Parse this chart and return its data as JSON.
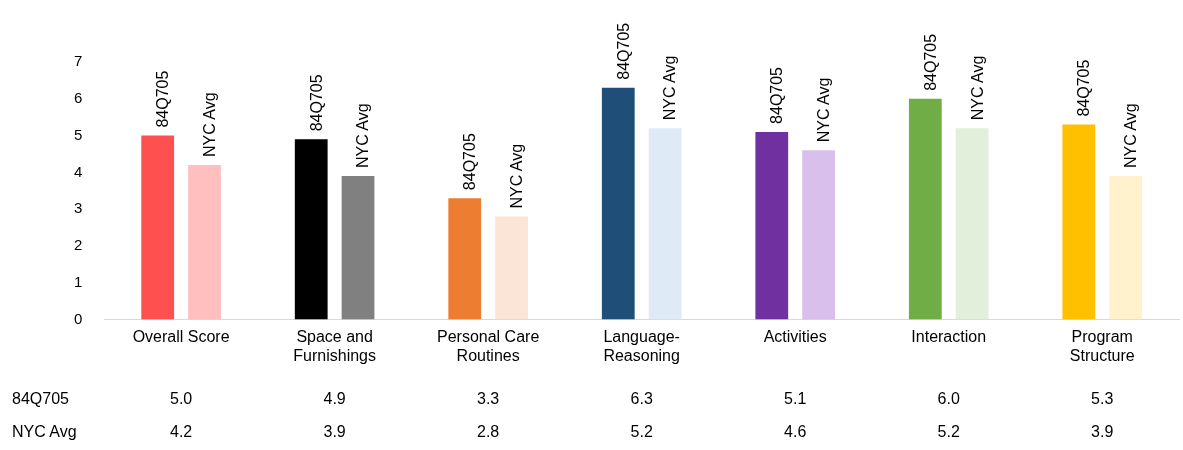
{
  "chart_data": {
    "type": "bar",
    "categories": [
      "Overall Score",
      "Space and Furnishings",
      "Personal Care Routines",
      "Language-Reasoning",
      "Activities",
      "Interaction",
      "Program Structure"
    ],
    "series": [
      {
        "name": "84Q705",
        "colors": [
          "#ff5050",
          "#000000",
          "#ed7d31",
          "#1f4e79",
          "#7030a0",
          "#70ad47",
          "#ffc000"
        ],
        "values": [
          5.0,
          4.9,
          3.3,
          6.3,
          5.1,
          6.0,
          5.3
        ],
        "value_labels": [
          "5.0",
          "4.9",
          "3.3",
          "6.3",
          "5.1",
          "6.0",
          "5.3"
        ]
      },
      {
        "name": "NYC Avg",
        "colors": [
          "#ffbfbf",
          "#808080",
          "#fbe5d6",
          "#deebf7",
          "#d9c0ec",
          "#e2efda",
          "#fff2cc"
        ],
        "values": [
          4.2,
          3.9,
          2.8,
          5.2,
          4.6,
          5.2,
          3.9
        ],
        "value_labels": [
          "4.2",
          "3.9",
          "2.8",
          "5.2",
          "4.6",
          "5.2",
          "3.9"
        ]
      }
    ],
    "ylim": [
      0,
      7
    ],
    "yticks": [
      0,
      1,
      2,
      3,
      4,
      5,
      6,
      7
    ]
  }
}
